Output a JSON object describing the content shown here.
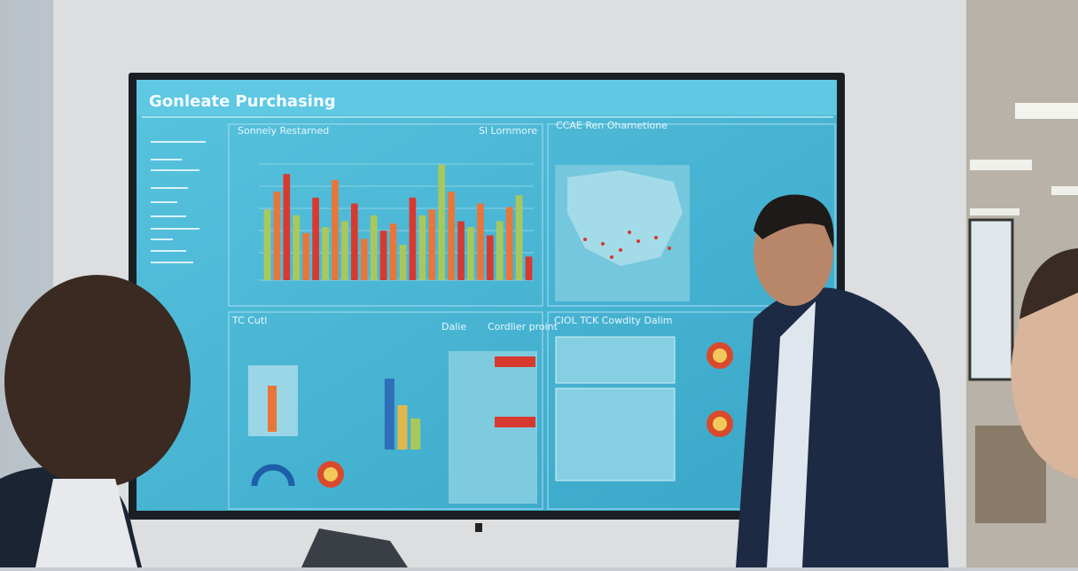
{
  "screen": {
    "title": "Gonleate Purchasing",
    "panels": [
      {
        "title": "Sonnely Restarned"
      },
      {
        "title": "Sl Lornmore"
      },
      {
        "title": "CCAE Ren Oharnetione"
      },
      {
        "title": "TC Cutl"
      },
      {
        "title": "Dalie"
      },
      {
        "title": "Cordlier proint"
      },
      {
        "title": "CIOL TCK Cowdity Dalim"
      }
    ],
    "bar_chart": {
      "values": [
        60,
        75,
        90,
        55,
        40,
        70,
        45,
        85,
        50,
        65,
        35,
        55,
        42,
        48,
        30,
        70,
        55,
        60,
        98,
        75,
        50,
        45,
        65,
        38,
        50,
        62,
        72,
        20
      ],
      "colors": [
        "#a9c85c",
        "#e8763a",
        "#d8392f",
        "#a9c85c",
        "#e8763a",
        "#d8392f",
        "#a9c85c",
        "#e8763a",
        "#a9c85c",
        "#d8392f",
        "#e8763a",
        "#a9c85c",
        "#d8392f",
        "#e8763a",
        "#a9c85c",
        "#d8392f",
        "#a9c85c",
        "#e8763a",
        "#a9c85c",
        "#e8763a",
        "#d8392f",
        "#a9c85c",
        "#e8763a",
        "#d8392f",
        "#a9c85c",
        "#e8763a",
        "#a9c85c",
        "#d8392f"
      ]
    },
    "small_chart": {
      "values": [
        80,
        50,
        35
      ],
      "colors": [
        "#2f6fb8",
        "#e0b84a",
        "#a9c85c"
      ]
    }
  }
}
